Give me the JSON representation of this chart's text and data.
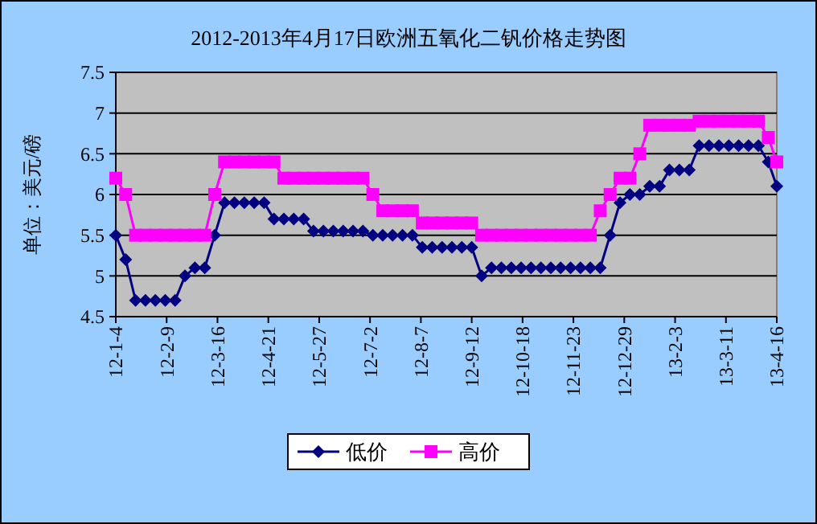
{
  "chart_data": {
    "type": "line",
    "title": "2012-2013年4月17日欧洲五氧化二钒价格走势图",
    "ylabel": "单位：美元/磅",
    "x": [
      "2012-01-04",
      "2012-01-11",
      "2012-01-18",
      "2012-01-25",
      "2012-02-01",
      "2012-02-08",
      "2012-02-15",
      "2012-02-22",
      "2012-02-29",
      "2012-03-07",
      "2012-03-14",
      "2012-03-21",
      "2012-03-28",
      "2012-04-04",
      "2012-04-11",
      "2012-04-18",
      "2012-04-25",
      "2012-05-02",
      "2012-05-09",
      "2012-05-16",
      "2012-05-23",
      "2012-05-30",
      "2012-06-06",
      "2012-06-13",
      "2012-06-20",
      "2012-06-27",
      "2012-07-04",
      "2012-07-11",
      "2012-07-18",
      "2012-07-25",
      "2012-08-01",
      "2012-08-08",
      "2012-08-15",
      "2012-08-22",
      "2012-08-29",
      "2012-09-05",
      "2012-09-12",
      "2012-09-19",
      "2012-09-26",
      "2012-10-03",
      "2012-10-10",
      "2012-10-17",
      "2012-10-24",
      "2012-10-31",
      "2012-11-07",
      "2012-11-14",
      "2012-11-21",
      "2012-11-28",
      "2012-12-05",
      "2012-12-12",
      "2012-12-19",
      "2012-12-26",
      "2013-01-02",
      "2013-01-09",
      "2013-01-16",
      "2013-01-23",
      "2013-01-30",
      "2013-02-06",
      "2013-02-13",
      "2013-02-20",
      "2013-02-27",
      "2013-03-06",
      "2013-03-13",
      "2013-03-20",
      "2013-03-27",
      "2013-04-03",
      "2013-04-10",
      "2013-04-16"
    ],
    "series": [
      {
        "name": "低价",
        "color": "#000080",
        "marker": "diamond",
        "values": [
          5.5,
          5.2,
          4.7,
          4.7,
          4.7,
          4.7,
          4.7,
          5.0,
          5.1,
          5.1,
          5.5,
          5.9,
          5.9,
          5.9,
          5.9,
          5.9,
          5.7,
          5.7,
          5.7,
          5.7,
          5.55,
          5.55,
          5.55,
          5.55,
          5.55,
          5.55,
          5.5,
          5.5,
          5.5,
          5.5,
          5.5,
          5.35,
          5.35,
          5.35,
          5.35,
          5.35,
          5.35,
          5.0,
          5.1,
          5.1,
          5.1,
          5.1,
          5.1,
          5.1,
          5.1,
          5.1,
          5.1,
          5.1,
          5.1,
          5.1,
          5.5,
          5.9,
          6.0,
          6.0,
          6.1,
          6.1,
          6.3,
          6.3,
          6.3,
          6.6,
          6.6,
          6.6,
          6.6,
          6.6,
          6.6,
          6.6,
          6.4,
          6.1
        ]
      },
      {
        "name": "高价",
        "color": "#ff00ff",
        "marker": "square",
        "values": [
          6.2,
          6.0,
          5.5,
          5.5,
          5.5,
          5.5,
          5.5,
          5.5,
          5.5,
          5.5,
          6.0,
          6.4,
          6.4,
          6.4,
          6.4,
          6.4,
          6.4,
          6.2,
          6.2,
          6.2,
          6.2,
          6.2,
          6.2,
          6.2,
          6.2,
          6.2,
          6.0,
          5.8,
          5.8,
          5.8,
          5.8,
          5.65,
          5.65,
          5.65,
          5.65,
          5.65,
          5.65,
          5.5,
          5.5,
          5.5,
          5.5,
          5.5,
          5.5,
          5.5,
          5.5,
          5.5,
          5.5,
          5.5,
          5.5,
          5.8,
          6.0,
          6.2,
          6.2,
          6.5,
          6.85,
          6.85,
          6.85,
          6.85,
          6.85,
          6.9,
          6.9,
          6.9,
          6.9,
          6.9,
          6.9,
          6.9,
          6.7,
          6.4
        ]
      }
    ],
    "xlim": [
      "2012-01-04",
      "2013-04-16"
    ],
    "xticks": [
      {
        "value": "2012-01-04",
        "label": "12-1-4"
      },
      {
        "value": "2012-02-09",
        "label": "12-2-9"
      },
      {
        "value": "2012-03-16",
        "label": "12-3-16"
      },
      {
        "value": "2012-04-21",
        "label": "12-4-21"
      },
      {
        "value": "2012-05-27",
        "label": "12-5-27"
      },
      {
        "value": "2012-07-02",
        "label": "12-7-2"
      },
      {
        "value": "2012-08-07",
        "label": "12-8-7"
      },
      {
        "value": "2012-09-12",
        "label": "12-9-12"
      },
      {
        "value": "2012-10-18",
        "label": "12-10-18"
      },
      {
        "value": "2012-11-23",
        "label": "12-11-23"
      },
      {
        "value": "2012-12-29",
        "label": "12-12-29"
      },
      {
        "value": "2013-02-03",
        "label": "13-2-3"
      },
      {
        "value": "2013-03-11",
        "label": "13-3-11"
      },
      {
        "value": "2013-04-16",
        "label": "13-4-16"
      }
    ],
    "ylim": [
      4.5,
      7.5
    ],
    "yticks": [
      4.5,
      5,
      5.5,
      6,
      6.5,
      7,
      7.5
    ],
    "grid": "y",
    "legend": "bottom",
    "line_style": "solid"
  }
}
